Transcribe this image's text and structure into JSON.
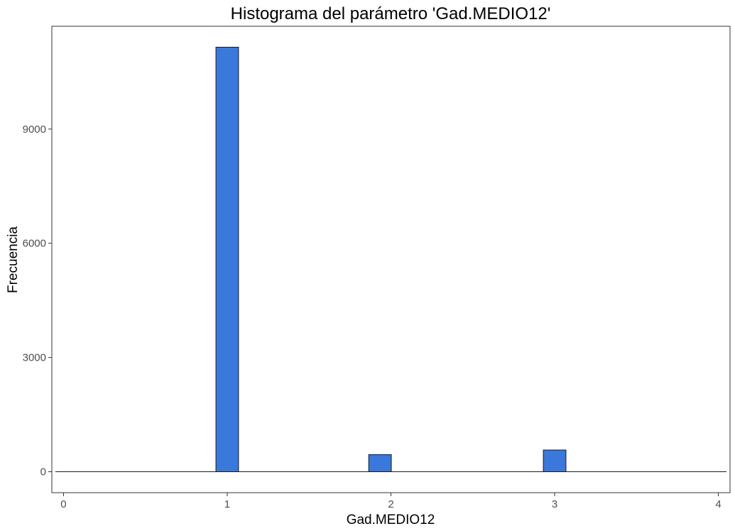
{
  "chart_data": {
    "type": "bar",
    "title": "Histograma del parámetro 'Gad.MEDIO12'",
    "xlabel": "Gad.MEDIO12",
    "ylabel": "Frecuencia",
    "x_ticks": [
      "0",
      "1",
      "2",
      "3",
      "4"
    ],
    "y_ticks": [
      "0",
      "3000",
      "6000",
      "9000"
    ],
    "xlim": [
      -0.0714,
      4.0714
    ],
    "ylim": [
      -550,
      11700
    ],
    "bin_width": 0.1381,
    "bins": [
      {
        "x": 1.0,
        "count": 11150
      },
      {
        "x": 1.9333,
        "count": 450
      },
      {
        "x": 3.0,
        "count": 570
      }
    ],
    "bar_color": "#3b78dc",
    "bar_edge_color": "#1a1a1a",
    "grid": false
  }
}
